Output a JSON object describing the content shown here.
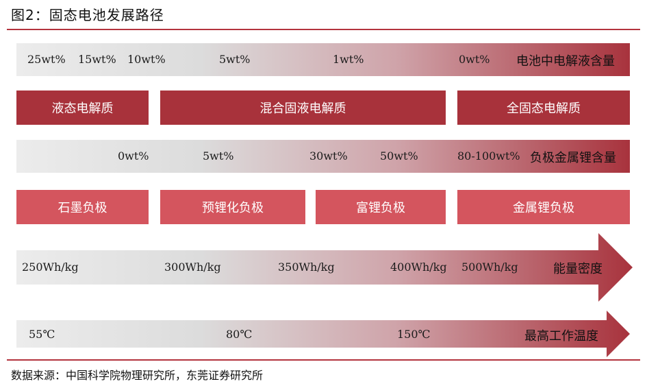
{
  "figure": {
    "title": "图2：固态电池发展路径",
    "source": "数据来源：中国科学院物理研究所，东莞证券研究所"
  },
  "electrolyte_content": {
    "label": "电池中电解液含量",
    "values": [
      "25wt%",
      "15wt%",
      "10wt%",
      "5wt%",
      "1wt%",
      "0wt%"
    ]
  },
  "electrolyte_types": [
    "液态电解质",
    "混合固液电解质",
    "全固态电解质"
  ],
  "lithium_content": {
    "label": "负极金属锂含量",
    "values": [
      "0wt%",
      "5wt%",
      "30wt%",
      "50wt%",
      "80-100wt%"
    ]
  },
  "anode_types": [
    "石墨负极",
    "预锂化负极",
    "富锂负极",
    "金属锂负极"
  ],
  "energy_density": {
    "label": "能量密度",
    "values": [
      "250Wh/kg",
      "300Wh/kg",
      "350Wh/kg",
      "400Wh/kg",
      "500Wh/kg"
    ]
  },
  "max_temperature": {
    "label": "最高工作温度",
    "values": [
      "55℃",
      "80℃",
      "150℃"
    ]
  },
  "colors": {
    "accent_dark": "#a8323b",
    "accent_light": "#d4555e",
    "rule": "#b3333d",
    "gradient_start": "#ececec",
    "gradient_end": "#a8333d"
  }
}
